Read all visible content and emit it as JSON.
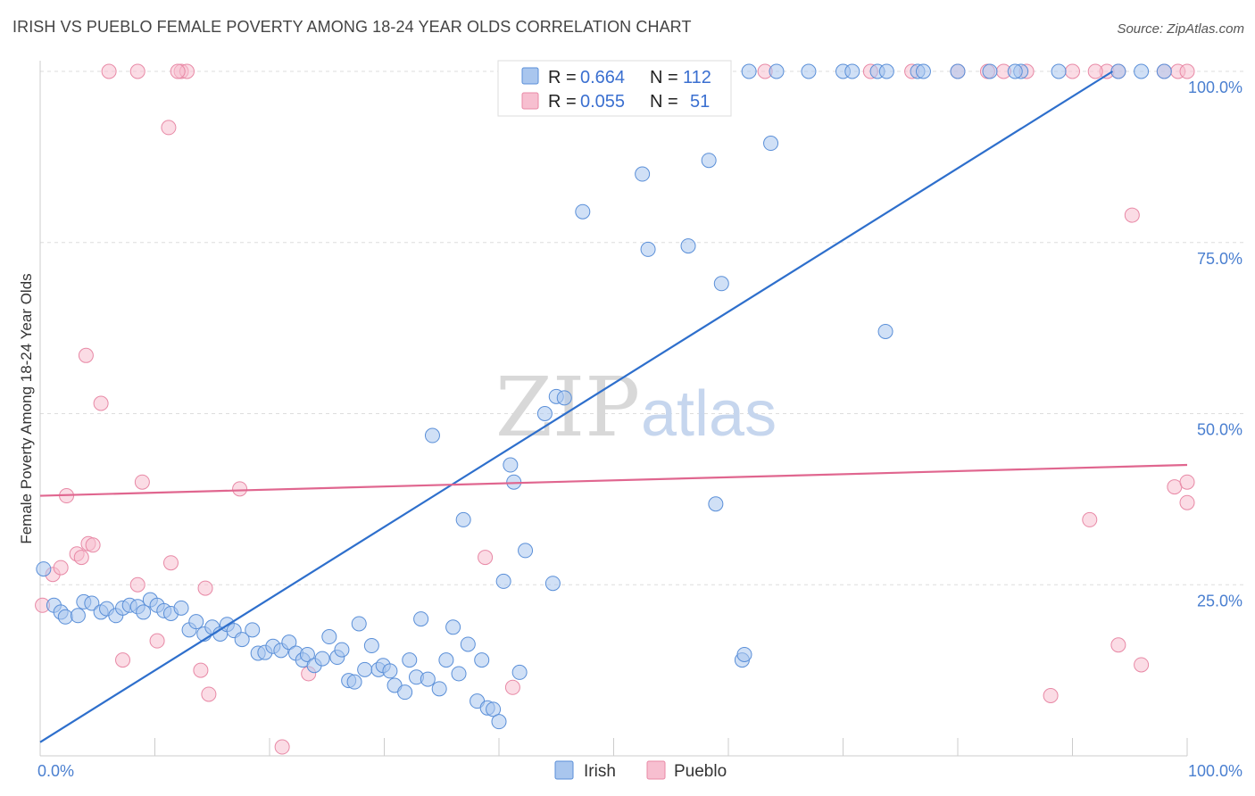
{
  "header": {
    "title": "IRISH VS PUEBLO FEMALE POVERTY AMONG 18-24 YEAR OLDS CORRELATION CHART",
    "source": "Source: ZipAtlas.com"
  },
  "watermark": {
    "zip": "ZIP",
    "atlas": "atlas"
  },
  "legend": {
    "irish": {
      "r_label": "R =",
      "r_value": "0.664",
      "n_label": "N =",
      "n_value": "112"
    },
    "pueblo": {
      "r_label": "R =",
      "r_value": "0.055",
      "n_label": "N =",
      "n_value": "51"
    }
  },
  "bottom_legend": {
    "irish": "Irish",
    "pueblo": "Pueblo"
  },
  "colors": {
    "irish_fill": "#a9c6ee",
    "irish_stroke": "#5a8fd8",
    "irish_line": "#2e6fcc",
    "pueblo_fill": "#f7bfd0",
    "pueblo_stroke": "#e889a6",
    "pueblo_line": "#e0668f",
    "tick_text": "#4a7fd0",
    "grid": "#dddddd"
  },
  "chart_data": {
    "type": "scatter",
    "title": "IRISH VS PUEBLO FEMALE POVERTY AMONG 18-24 YEAR OLDS CORRELATION CHART",
    "xlabel": "",
    "ylabel": "Female Poverty Among 18-24 Year Olds",
    "xlim": [
      0,
      100
    ],
    "ylim": [
      0,
      100
    ],
    "x_ticks": [
      "0.0%",
      "100.0%"
    ],
    "y_ticks": [
      "25.0%",
      "50.0%",
      "75.0%",
      "100.0%"
    ],
    "grid": true,
    "series": [
      {
        "name": "Irish",
        "trend": [
          [
            0,
            2.0
          ],
          [
            93.5,
            100
          ]
        ],
        "points": [
          [
            0.3,
            27.3
          ],
          [
            1.2,
            22.0
          ],
          [
            1.8,
            21.0
          ],
          [
            2.2,
            20.3
          ],
          [
            3.3,
            20.5
          ],
          [
            3.8,
            22.5
          ],
          [
            4.5,
            22.3
          ],
          [
            5.3,
            21.0
          ],
          [
            5.8,
            21.5
          ],
          [
            6.6,
            20.5
          ],
          [
            7.2,
            21.6
          ],
          [
            7.8,
            22.0
          ],
          [
            8.5,
            21.8
          ],
          [
            9.0,
            21.0
          ],
          [
            9.6,
            22.8
          ],
          [
            10.2,
            22.0
          ],
          [
            10.8,
            21.2
          ],
          [
            11.4,
            20.8
          ],
          [
            12.3,
            21.6
          ],
          [
            13.0,
            18.4
          ],
          [
            13.6,
            19.6
          ],
          [
            14.3,
            17.8
          ],
          [
            15.0,
            18.8
          ],
          [
            15.7,
            17.8
          ],
          [
            16.3,
            19.2
          ],
          [
            16.9,
            18.3
          ],
          [
            17.6,
            17.0
          ],
          [
            18.5,
            18.4
          ],
          [
            19.0,
            15.0
          ],
          [
            19.6,
            15.1
          ],
          [
            20.3,
            16.0
          ],
          [
            21.0,
            15.4
          ],
          [
            21.7,
            16.6
          ],
          [
            22.3,
            15.0
          ],
          [
            22.9,
            14.0
          ],
          [
            23.3,
            14.8
          ],
          [
            23.9,
            13.2
          ],
          [
            24.6,
            14.2
          ],
          [
            25.2,
            17.4
          ],
          [
            25.9,
            14.4
          ],
          [
            26.3,
            15.5
          ],
          [
            26.9,
            11.0
          ],
          [
            27.4,
            10.8
          ],
          [
            27.8,
            19.3
          ],
          [
            28.3,
            12.6
          ],
          [
            28.9,
            16.1
          ],
          [
            29.5,
            12.6
          ],
          [
            29.9,
            13.2
          ],
          [
            30.5,
            12.4
          ],
          [
            30.9,
            10.3
          ],
          [
            31.8,
            9.3
          ],
          [
            32.2,
            14.0
          ],
          [
            32.8,
            11.5
          ],
          [
            33.2,
            20.0
          ],
          [
            33.8,
            11.2
          ],
          [
            34.2,
            46.8
          ],
          [
            34.8,
            9.8
          ],
          [
            35.4,
            14.0
          ],
          [
            36.0,
            18.8
          ],
          [
            36.5,
            12.0
          ],
          [
            36.9,
            34.5
          ],
          [
            37.3,
            16.3
          ],
          [
            38.1,
            8.0
          ],
          [
            38.5,
            14.0
          ],
          [
            39.0,
            7.0
          ],
          [
            39.5,
            6.8
          ],
          [
            40.0,
            5.0
          ],
          [
            40.4,
            25.5
          ],
          [
            41.0,
            42.5
          ],
          [
            41.3,
            40.0
          ],
          [
            41.8,
            12.2
          ],
          [
            42.3,
            30.0
          ],
          [
            44.0,
            50.0
          ],
          [
            44.7,
            25.2
          ],
          [
            45.0,
            52.5
          ],
          [
            45.7,
            52.3
          ],
          [
            46.3,
            100
          ],
          [
            46.6,
            100
          ],
          [
            47.3,
            79.5
          ],
          [
            48.2,
            100
          ],
          [
            49.0,
            100
          ],
          [
            50.2,
            100
          ],
          [
            52.0,
            100
          ],
          [
            52.5,
            85.0
          ],
          [
            53.0,
            74.0
          ],
          [
            55.5,
            100
          ],
          [
            56.5,
            74.5
          ],
          [
            57.5,
            100
          ],
          [
            58.3,
            87.0
          ],
          [
            58.9,
            36.8
          ],
          [
            59.4,
            69.0
          ],
          [
            61.2,
            14.0
          ],
          [
            61.4,
            14.8
          ],
          [
            61.8,
            100
          ],
          [
            63.7,
            89.5
          ],
          [
            64.2,
            100
          ],
          [
            67.0,
            100
          ],
          [
            70.0,
            100
          ],
          [
            70.8,
            100
          ],
          [
            73.0,
            100
          ],
          [
            73.8,
            100
          ],
          [
            76.5,
            100
          ],
          [
            77.0,
            100
          ],
          [
            80.0,
            100
          ],
          [
            82.8,
            100
          ],
          [
            85.5,
            100
          ],
          [
            88.8,
            100
          ],
          [
            94.0,
            100
          ],
          [
            96.0,
            100
          ],
          [
            98.0,
            100
          ],
          [
            73.7,
            62.0
          ],
          [
            85.0,
            100
          ]
        ]
      },
      {
        "name": "Pueblo",
        "trend": [
          [
            0,
            38.0
          ],
          [
            100,
            42.5
          ]
        ],
        "points": [
          [
            0.2,
            22.0
          ],
          [
            1.1,
            26.5
          ],
          [
            1.8,
            27.5
          ],
          [
            2.3,
            38.0
          ],
          [
            3.2,
            29.5
          ],
          [
            3.6,
            29.0
          ],
          [
            4.2,
            31.0
          ],
          [
            4.6,
            30.8
          ],
          [
            4.0,
            58.5
          ],
          [
            5.3,
            51.5
          ],
          [
            7.2,
            14.0
          ],
          [
            8.5,
            25.0
          ],
          [
            8.9,
            40.0
          ],
          [
            10.2,
            16.8
          ],
          [
            11.2,
            91.8
          ],
          [
            11.4,
            28.2
          ],
          [
            12.3,
            100
          ],
          [
            12.8,
            100
          ],
          [
            14.0,
            12.5
          ],
          [
            14.4,
            24.5
          ],
          [
            14.7,
            9.0
          ],
          [
            17.4,
            39.0
          ],
          [
            21.1,
            1.3
          ],
          [
            23.4,
            12.0
          ],
          [
            38.8,
            29.0
          ],
          [
            41.2,
            10.0
          ],
          [
            63.2,
            100
          ],
          [
            72.4,
            100
          ],
          [
            82.6,
            100
          ],
          [
            88.1,
            8.8
          ],
          [
            91.5,
            34.5
          ],
          [
            93.0,
            100
          ],
          [
            94.0,
            16.2
          ],
          [
            95.2,
            79.0
          ],
          [
            96.0,
            13.3
          ],
          [
            98.0,
            100
          ],
          [
            98.9,
            39.3
          ],
          [
            99.2,
            100
          ],
          [
            100,
            100
          ],
          [
            100,
            37.0
          ],
          [
            100,
            40.0
          ],
          [
            94.0,
            100
          ],
          [
            92.0,
            100
          ],
          [
            90.0,
            100
          ],
          [
            86.0,
            100
          ],
          [
            84.0,
            100
          ],
          [
            80.0,
            100
          ],
          [
            76.0,
            100
          ],
          [
            6.0,
            100
          ],
          [
            12.0,
            100
          ],
          [
            8.5,
            100
          ]
        ]
      }
    ]
  }
}
